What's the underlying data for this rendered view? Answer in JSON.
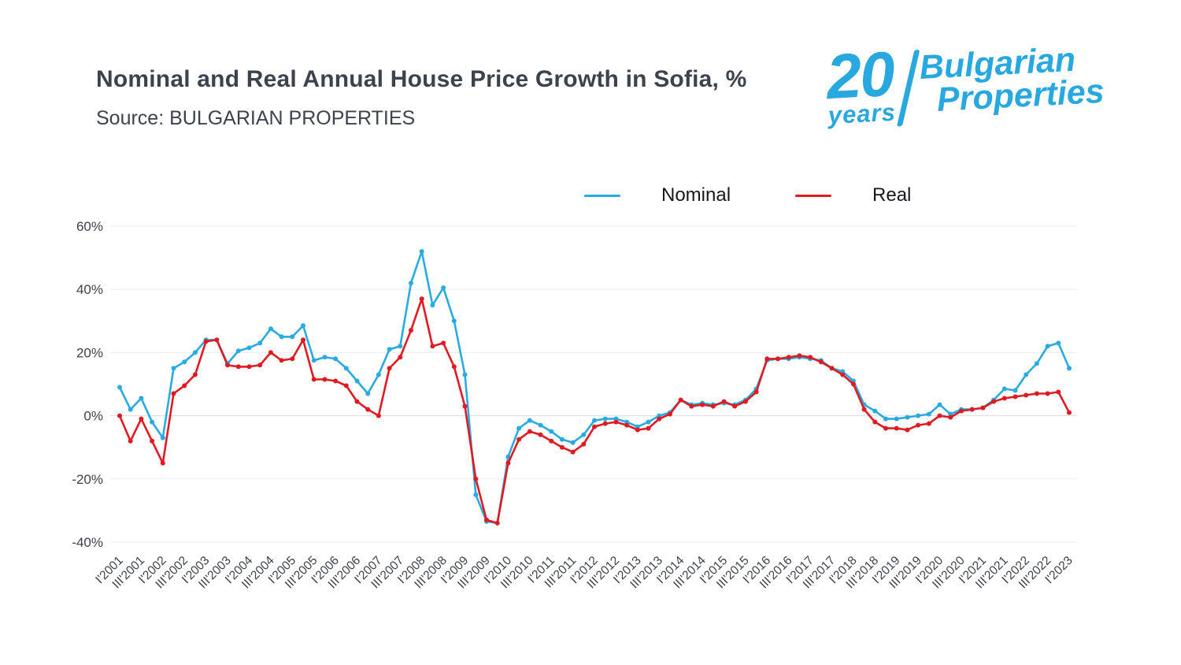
{
  "header": {
    "title": "Nominal and Real Annual House Price Growth in Sofia, %",
    "source": "Source: BULGARIAN PROPERTIES"
  },
  "logo": {
    "number": "20",
    "years": "years",
    "brand_top": "Bulgarian",
    "brand_bottom": "Properties",
    "color": "#29A8E0"
  },
  "chart_data": {
    "type": "line",
    "title": "Nominal and Real Annual House Price Growth in Sofia, %",
    "legend_position": "top",
    "grid": "horizontal",
    "ylim": [
      -40,
      60
    ],
    "yticks": [
      60,
      40,
      20,
      0,
      -20,
      -40
    ],
    "ytick_suffix": "%",
    "x_label_every": 2,
    "x": [
      "I'2001",
      "II'2001",
      "III'2001",
      "IV'2001",
      "I'2002",
      "II'2002",
      "III'2002",
      "IV'2002",
      "I'2003",
      "II'2003",
      "III'2003",
      "IV'2003",
      "I'2004",
      "II'2004",
      "III'2004",
      "IV'2004",
      "I'2005",
      "II'2005",
      "III'2005",
      "IV'2005",
      "I'2006",
      "II'2006",
      "III'2006",
      "IV'2006",
      "I'2007",
      "II'2007",
      "III'2007",
      "IV'2007",
      "I'2008",
      "II'2008",
      "III'2008",
      "IV'2008",
      "I'2009",
      "II'2009",
      "III'2009",
      "IV'2009",
      "I'2010",
      "II'2010",
      "III'2010",
      "IV'2010",
      "I'2011",
      "II'2011",
      "III'2011",
      "IV'2011",
      "I'2012",
      "II'2012",
      "III'2012",
      "IV'2012",
      "I'2013",
      "II'2013",
      "III'2013",
      "IV'2013",
      "I'2014",
      "II'2014",
      "III'2014",
      "IV'2014",
      "I'2015",
      "II'2015",
      "III'2015",
      "IV'2015",
      "I'2016",
      "II'2016",
      "III'2016",
      "IV'2016",
      "I'2017",
      "II'2017",
      "III'2017",
      "IV'2017",
      "I'2018",
      "II'2018",
      "III'2018",
      "IV'2018",
      "I'2019",
      "II'2019",
      "III'2019",
      "IV'2019",
      "I'2020",
      "II'2020",
      "III'2020",
      "IV'2020",
      "I'2021",
      "II'2021",
      "III'2021",
      "IV'2021",
      "I'2022",
      "II'2022",
      "III'2022",
      "IV'2022",
      "I'2023"
    ],
    "series": [
      {
        "name": "Nominal",
        "color": "#29ABE2",
        "values": [
          9,
          2,
          5.5,
          -2,
          -7,
          15,
          17,
          20,
          24,
          24,
          16.5,
          20.5,
          21.5,
          23,
          27.5,
          25,
          25,
          28.5,
          17.5,
          18.5,
          18,
          15,
          11,
          7,
          13,
          21,
          22,
          42,
          52,
          35,
          40.5,
          30,
          13,
          -25,
          -33.5,
          -34,
          -13,
          -4,
          -1.5,
          -3,
          -5,
          -7.5,
          -8.5,
          -6,
          -1.5,
          -1,
          -1,
          -2,
          -3.5,
          -2,
          0,
          1,
          5,
          3.5,
          4,
          3.5,
          4,
          3.5,
          5,
          8.5,
          17.5,
          18,
          18,
          18.5,
          18,
          17.5,
          15,
          14,
          11,
          3.5,
          1.5,
          -1,
          -1,
          -0.5,
          0,
          0.5,
          3.5,
          0.5,
          2,
          2,
          2.5,
          5,
          8.5,
          8,
          13,
          16.5,
          22,
          23,
          15
        ]
      },
      {
        "name": "Real",
        "color": "#E11A22",
        "values": [
          0,
          -8,
          -1,
          -8,
          -15,
          7,
          9.5,
          13,
          23.5,
          24,
          16,
          15.5,
          15.5,
          16,
          20,
          17.5,
          18,
          24,
          11.5,
          11.5,
          11,
          9.5,
          4.5,
          2,
          0,
          15,
          18.5,
          27,
          37,
          22,
          23,
          15.5,
          3,
          -20,
          -33,
          -34,
          -15,
          -7.5,
          -5,
          -6,
          -8,
          -10,
          -11.5,
          -9,
          -3.5,
          -2.5,
          -2,
          -3,
          -4.5,
          -4,
          -1,
          0.5,
          5,
          3,
          3.5,
          3,
          4.5,
          3,
          4.5,
          7.5,
          18,
          18,
          18.5,
          19,
          18.5,
          17,
          15,
          13,
          10,
          2,
          -2,
          -4,
          -4,
          -4.5,
          -3,
          -2.5,
          0,
          -0.5,
          1.5,
          2,
          2.5,
          4.5,
          5.5,
          6,
          6.5,
          7,
          7,
          7.5,
          1
        ]
      }
    ]
  }
}
